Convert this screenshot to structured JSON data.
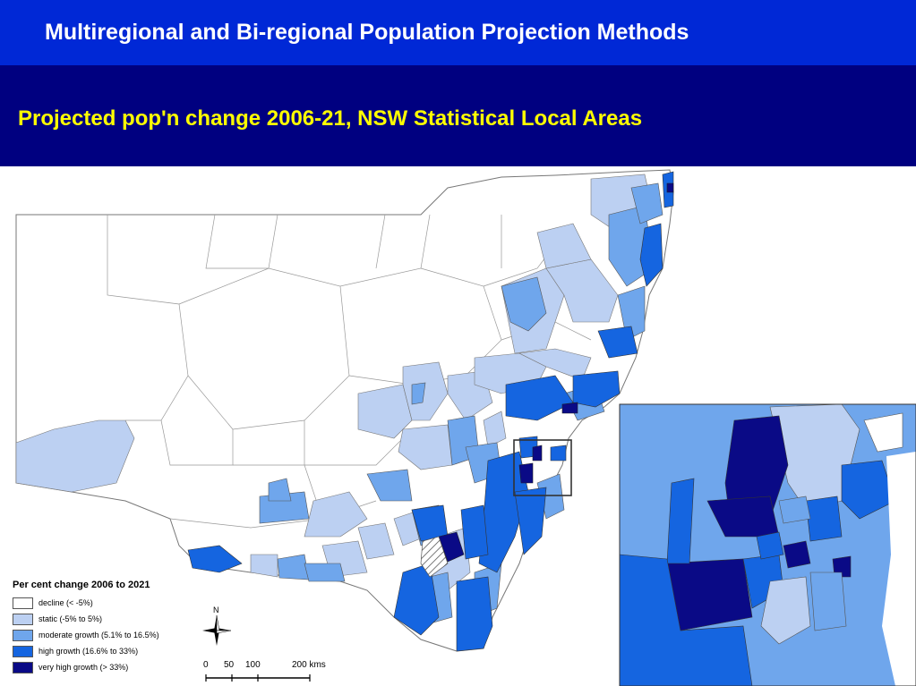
{
  "header": {
    "title": "Multiregional and Bi-regional Population Projection Methods"
  },
  "subheader": {
    "title": "Projected pop'n change 2006-21, NSW Statistical Local Areas"
  },
  "legend": {
    "title": "Per cent change 2006 to 2021",
    "items": [
      {
        "label": "decline (< -5%)",
        "color": "#ffffff"
      },
      {
        "label": "static (-5% to 5%)",
        "color": "#bcd0f2"
      },
      {
        "label": "moderate growth (5.1% to 16.5%)",
        "color": "#6fa6ec"
      },
      {
        "label": "high growth (16.6% to 33%)",
        "color": "#1565e0"
      },
      {
        "label": "very high growth (> 33%)",
        "color": "#0a0a86"
      }
    ]
  },
  "north_arrow": {
    "label": "N"
  },
  "scale": {
    "ticks": [
      "0",
      "50",
      "100",
      "200 kms"
    ]
  },
  "colors": {
    "header_bg": "#0028d6",
    "subheader_bg": "#000080",
    "header_text": "#ffffff",
    "subheader_text": "#ffff00"
  }
}
